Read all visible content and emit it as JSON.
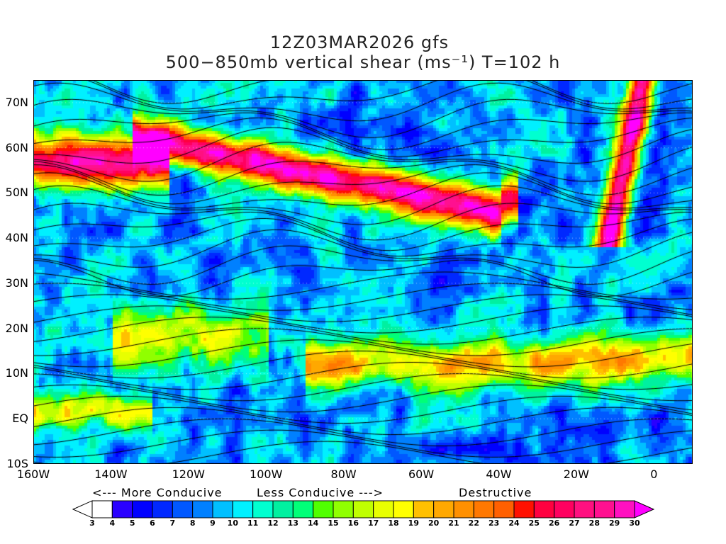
{
  "title": {
    "line1": "12Z03MAR2026 gfs",
    "line2": "500−850mb vertical shear (ms⁻¹) T=102 h"
  },
  "map": {
    "lon_range": [
      -160,
      10
    ],
    "lat_range": [
      -10,
      75
    ],
    "lat_labels": [
      {
        "v": -10,
        "t": "10S"
      },
      {
        "v": 0,
        "t": "EQ"
      },
      {
        "v": 10,
        "t": "10N"
      },
      {
        "v": 20,
        "t": "20N"
      },
      {
        "v": 30,
        "t": "30N"
      },
      {
        "v": 40,
        "t": "40N"
      },
      {
        "v": 50,
        "t": "50N"
      },
      {
        "v": 60,
        "t": "60N"
      },
      {
        "v": 70,
        "t": "70N"
      }
    ],
    "lon_labels": [
      {
        "v": -160,
        "t": "160W"
      },
      {
        "v": -140,
        "t": "140W"
      },
      {
        "v": -120,
        "t": "120W"
      },
      {
        "v": -100,
        "t": "100W"
      },
      {
        "v": -80,
        "t": "80W"
      },
      {
        "v": -60,
        "t": "60W"
      },
      {
        "v": -40,
        "t": "40W"
      },
      {
        "v": -20,
        "t": "20W"
      },
      {
        "v": 0,
        "t": "0"
      }
    ]
  },
  "legend": {
    "more_conducive": "<--- More Conducive",
    "less_conducive": "Less Conducive --->",
    "destructive": "Destructive"
  },
  "colorbar": {
    "levels": [
      3,
      4,
      5,
      6,
      7,
      8,
      9,
      10,
      11,
      12,
      13,
      14,
      15,
      16,
      17,
      18,
      19,
      20,
      21,
      22,
      23,
      24,
      25,
      26,
      27,
      28,
      29,
      30
    ],
    "under_color": "#ffffff",
    "over_color": "#ff00ff",
    "colors": [
      "#ffffff",
      "#2a00ff",
      "#0000ff",
      "#0028ff",
      "#0058ff",
      "#0080ff",
      "#00c0ff",
      "#00f0ff",
      "#00ffd0",
      "#00f0a0",
      "#00ff78",
      "#50ff00",
      "#90ff00",
      "#c0ff00",
      "#e8ff00",
      "#ffff00",
      "#ffc000",
      "#ffa800",
      "#ff9000",
      "#ff7800",
      "#ff6000",
      "#ff1000",
      "#ff0040",
      "#ff0060",
      "#ff1080",
      "#ff1090",
      "#ff10c0"
    ]
  }
}
